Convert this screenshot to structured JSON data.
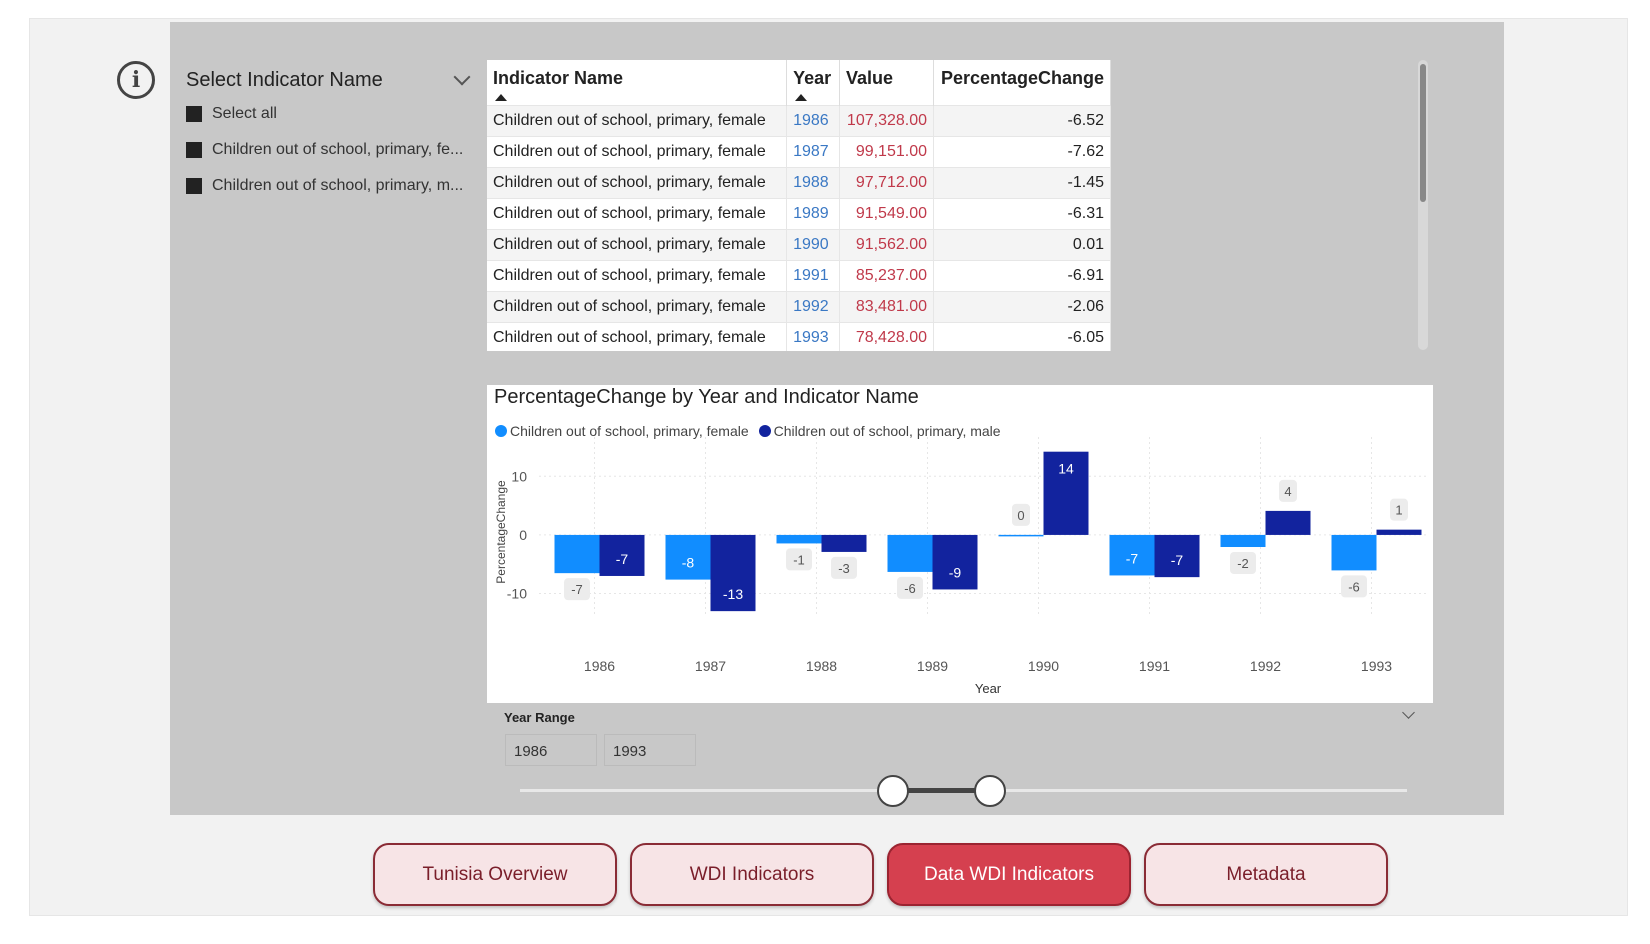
{
  "slicer": {
    "title": "Select Indicator Name",
    "items": [
      {
        "label": "Select all"
      },
      {
        "label": "Children out of school, primary, fe..."
      },
      {
        "label": "Children out of school, primary, m..."
      }
    ]
  },
  "table": {
    "headers": [
      "Indicator Name",
      "Year",
      "Value",
      "PercentageChange"
    ],
    "rows": [
      [
        "Children out of school, primary, female",
        "1986",
        "107,328.00",
        "-6.52"
      ],
      [
        "Children out of school, primary, female",
        "1987",
        "99,151.00",
        "-7.62"
      ],
      [
        "Children out of school, primary, female",
        "1988",
        "97,712.00",
        "-1.45"
      ],
      [
        "Children out of school, primary, female",
        "1989",
        "91,549.00",
        "-6.31"
      ],
      [
        "Children out of school, primary, female",
        "1990",
        "91,562.00",
        "0.01"
      ],
      [
        "Children out of school, primary, female",
        "1991",
        "85,237.00",
        "-6.91"
      ],
      [
        "Children out of school, primary, female",
        "1992",
        "83,481.00",
        "-2.06"
      ],
      [
        "Children out of school, primary, female",
        "1993",
        "78,428.00",
        "-6.05"
      ]
    ]
  },
  "chart_data": {
    "type": "bar",
    "title": "PercentageChange by Year and Indicator Name",
    "xlabel": "Year",
    "ylabel": "PercentageChange",
    "ylim": [
      -14,
      15
    ],
    "yticks": [
      -10,
      0,
      10
    ],
    "categories": [
      "1986",
      "1987",
      "1988",
      "1989",
      "1990",
      "1991",
      "1992",
      "1993"
    ],
    "series": [
      {
        "name": "Children out of school, primary, female",
        "color": "#118dff",
        "values": [
          -6.52,
          -7.62,
          -1.45,
          -6.31,
          0.01,
          -6.91,
          -2.06,
          -6.05
        ],
        "labels": [
          "-7",
          "-8",
          "-1",
          "-6",
          "0",
          "-7",
          "-2",
          "-6"
        ]
      },
      {
        "name": "Children out of school, primary, male",
        "color": "#12239e",
        "values": [
          -7.0,
          -13.0,
          -2.9,
          -9.3,
          14.2,
          -7.2,
          4.1,
          0.9
        ],
        "labels": [
          "-7",
          "-13",
          "-3",
          "-9",
          "14",
          "-7",
          "4",
          "1"
        ]
      }
    ],
    "grid": true,
    "legend": "top-left"
  },
  "year_range": {
    "label": "Year Range",
    "from": "1986",
    "to": "1993",
    "selected_fraction": [
      0.42,
      0.53
    ]
  },
  "nav": {
    "buttons": [
      {
        "label": "Tunisia Overview",
        "active": false
      },
      {
        "label": "WDI Indicators",
        "active": false
      },
      {
        "label": "Data WDI Indicators",
        "active": true
      },
      {
        "label": "Metadata",
        "active": false
      }
    ]
  },
  "icons": {
    "info": "info-icon",
    "dropdown": "chevron-down-icon",
    "sort": "sort-ascending-icon"
  }
}
